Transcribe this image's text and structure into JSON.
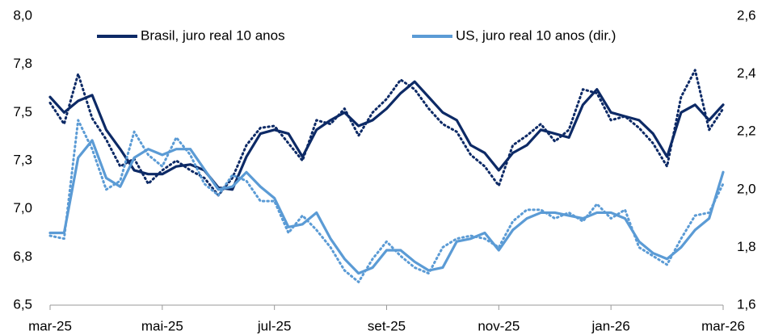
{
  "chart_data": {
    "type": "line",
    "x": [
      0,
      0.25,
      0.5,
      0.75,
      1,
      1.25,
      1.5,
      1.75,
      2,
      2.25,
      2.5,
      2.75,
      3,
      3.25,
      3.5,
      3.75,
      4,
      4.25,
      4.5,
      4.75,
      5,
      5.25,
      5.5,
      5.75,
      6,
      6.25,
      6.5,
      6.75,
      7,
      7.25,
      7.5,
      7.75,
      8,
      8.25,
      8.5,
      8.75,
      9,
      9.25,
      9.5,
      9.75,
      10,
      10.25,
      10.5,
      10.75,
      11,
      11.25,
      11.5,
      11.75,
      12
    ],
    "xlim": [
      0,
      12
    ],
    "xticks": [
      {
        "value": 0,
        "label": "mar-25"
      },
      {
        "value": 2,
        "label": "mai-25"
      },
      {
        "value": 4,
        "label": "jul-25"
      },
      {
        "value": 6,
        "label": "set-25"
      },
      {
        "value": 8,
        "label": "nov-25"
      },
      {
        "value": 10,
        "label": "jan-26"
      },
      {
        "value": 12,
        "label": "mar-26"
      }
    ],
    "ylim": [
      6.5,
      8.0
    ],
    "yticks": [
      {
        "value": 6.5,
        "label": "6,5"
      },
      {
        "value": 6.75,
        "label": "6,8"
      },
      {
        "value": 7.0,
        "label": "7,0"
      },
      {
        "value": 7.25,
        "label": "7,3"
      },
      {
        "value": 7.5,
        "label": "7,5"
      },
      {
        "value": 7.75,
        "label": "7,8"
      },
      {
        "value": 8.0,
        "label": "8,0"
      }
    ],
    "y2lim": [
      1.6,
      2.6
    ],
    "y2ticks": [
      {
        "value": 1.6,
        "label": "1,6"
      },
      {
        "value": 1.8,
        "label": "1,8"
      },
      {
        "value": 2.0,
        "label": "2,0"
      },
      {
        "value": 2.2,
        "label": "2,2"
      },
      {
        "value": 2.4,
        "label": "2,4"
      },
      {
        "value": 2.6,
        "label": "2,6"
      }
    ],
    "series": [
      {
        "name": "Brasil, juro real 10 anos",
        "color": "#0d2a66",
        "values": [
          7.58,
          7.5,
          7.56,
          7.59,
          7.41,
          7.31,
          7.2,
          7.18,
          7.18,
          7.22,
          7.23,
          7.2,
          7.11,
          7.1,
          7.27,
          7.39,
          7.41,
          7.39,
          7.27,
          7.41,
          7.46,
          7.5,
          7.43,
          7.46,
          7.52,
          7.6,
          7.66,
          7.58,
          7.5,
          7.46,
          7.33,
          7.29,
          7.2,
          7.29,
          7.33,
          7.41,
          7.39,
          7.37,
          7.54,
          7.62,
          7.5,
          7.48,
          7.46,
          7.39,
          7.27,
          7.5,
          7.54,
          7.46,
          7.54
        ]
      },
      {
        "color": "#0d2a66",
        "dash": true,
        "values": [
          7.55,
          7.44,
          7.7,
          7.47,
          7.36,
          7.22,
          7.26,
          7.13,
          7.2,
          7.25,
          7.2,
          7.16,
          7.07,
          7.16,
          7.33,
          7.42,
          7.43,
          7.34,
          7.25,
          7.46,
          7.44,
          7.52,
          7.38,
          7.5,
          7.57,
          7.67,
          7.62,
          7.52,
          7.44,
          7.4,
          7.28,
          7.22,
          7.12,
          7.33,
          7.38,
          7.44,
          7.35,
          7.41,
          7.62,
          7.6,
          7.46,
          7.48,
          7.42,
          7.34,
          7.22,
          7.58,
          7.72,
          7.41,
          7.52
        ]
      },
      {
        "name": "US, juro real 10 anos (dir.)",
        "color": "#5b9bd5",
        "axis": "y2",
        "values": [
          1.85,
          1.85,
          2.11,
          2.17,
          2.04,
          2.01,
          2.11,
          2.14,
          2.12,
          2.14,
          2.14,
          2.07,
          2.0,
          2.01,
          2.06,
          2.01,
          1.97,
          1.87,
          1.88,
          1.92,
          1.83,
          1.76,
          1.71,
          1.73,
          1.79,
          1.79,
          1.75,
          1.72,
          1.73,
          1.82,
          1.83,
          1.85,
          1.79,
          1.86,
          1.9,
          1.92,
          1.92,
          1.91,
          1.9,
          1.92,
          1.92,
          1.9,
          1.82,
          1.78,
          1.76,
          1.8,
          1.86,
          1.9,
          2.06
        ]
      },
      {
        "color": "#5b9bd5",
        "axis": "y2",
        "dash": true,
        "values": [
          1.84,
          1.83,
          2.24,
          2.14,
          2.0,
          2.03,
          2.2,
          2.12,
          2.08,
          2.18,
          2.12,
          2.02,
          1.98,
          2.05,
          2.03,
          1.96,
          1.96,
          1.85,
          1.91,
          1.86,
          1.8,
          1.72,
          1.68,
          1.76,
          1.82,
          1.77,
          1.73,
          1.71,
          1.8,
          1.83,
          1.84,
          1.83,
          1.8,
          1.89,
          1.93,
          1.93,
          1.9,
          1.92,
          1.89,
          1.95,
          1.9,
          1.93,
          1.8,
          1.77,
          1.74,
          1.83,
          1.91,
          1.92,
          2.02
        ]
      }
    ]
  }
}
